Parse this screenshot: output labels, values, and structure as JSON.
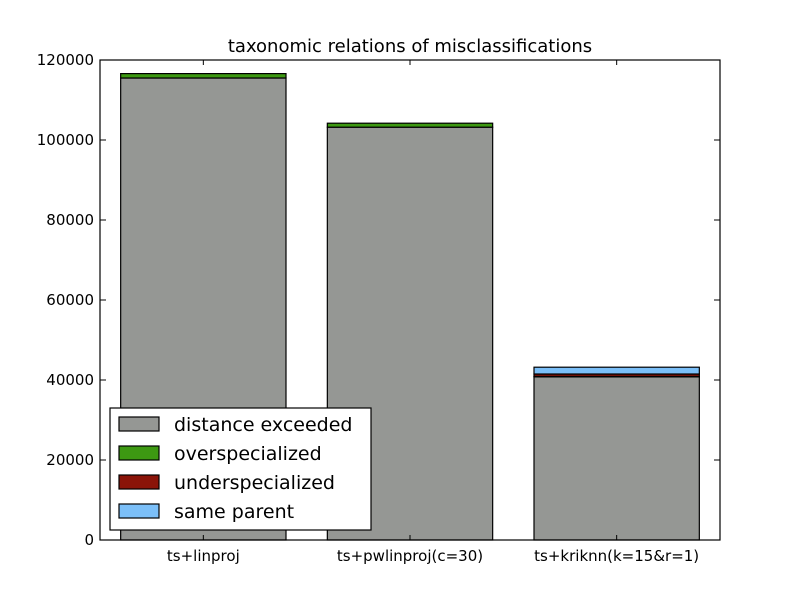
{
  "chart_data": {
    "type": "bar",
    "stacked": true,
    "title": "taxonomic relations of misclassifications",
    "xlabel": "",
    "ylabel": "",
    "categories": [
      "ts+linproj",
      "ts+pwlinproj(c=30)",
      "ts+kriknn(k=15&r=1)"
    ],
    "series": [
      {
        "name": "distance exceeded",
        "color": "#959794",
        "values": [
          115500,
          103200,
          40800
        ]
      },
      {
        "name": "overspecialized",
        "color": "#3d9912",
        "values": [
          1100,
          1000,
          100
        ]
      },
      {
        "name": "underspecialized",
        "color": "#8b1409",
        "values": [
          0,
          0,
          600
        ]
      },
      {
        "name": "same parent",
        "color": "#7bbff8",
        "values": [
          0,
          0,
          1700
        ]
      }
    ],
    "ylim": [
      0,
      120000
    ],
    "yticks": [
      0,
      20000,
      40000,
      60000,
      80000,
      100000,
      120000
    ],
    "grid": false,
    "legend_position": "lower-left"
  }
}
